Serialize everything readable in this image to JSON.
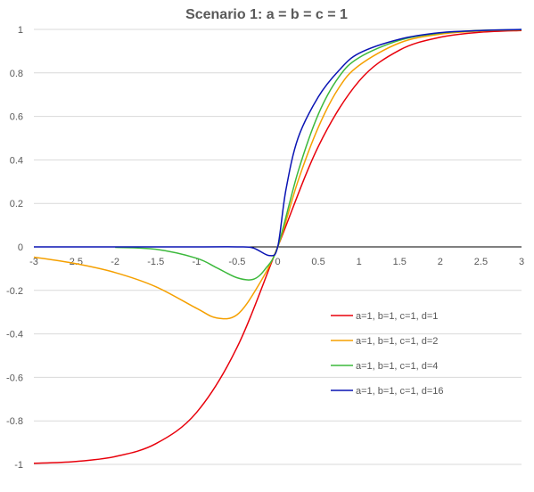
{
  "chart_data": {
    "type": "line",
    "title": "Scenario 1: a = b = c = 1",
    "xlabel": "",
    "ylabel": "",
    "xlim": [
      -3,
      3
    ],
    "ylim": [
      -1,
      1
    ],
    "x_ticks": [
      "-3",
      "-2.5",
      "-2",
      "-1.5",
      "-1",
      "-0.5",
      "0",
      "0.5",
      "1",
      "1.5",
      "2",
      "2.5",
      "3"
    ],
    "y_ticks": [
      "-1",
      "-0.8",
      "-0.6",
      "-0.4",
      "-0.2",
      "0",
      "0.2",
      "0.4",
      "0.6",
      "0.8",
      "1"
    ],
    "grid": "horizontal",
    "legend_position": "right",
    "series": [
      {
        "name": "a=1, b=1, c=1, d=1",
        "color": "#e8000b",
        "x": [
          -3,
          -2.5,
          -2,
          -1.5,
          -1,
          -0.5,
          0,
          0.5,
          1,
          1.5,
          2,
          2.5,
          3
        ],
        "values": [
          -0.995,
          -0.987,
          -0.964,
          -0.905,
          -0.762,
          -0.462,
          0.0,
          0.462,
          0.762,
          0.905,
          0.964,
          0.987,
          0.995
        ]
      },
      {
        "name": "a=1, b=1, c=1, d=2",
        "color": "#f5a000",
        "x": [
          -3,
          -2.5,
          -2,
          -1.5,
          -1,
          -0.75,
          -0.5,
          -0.25,
          0,
          0.25,
          0.5,
          0.75,
          1,
          1.5,
          2,
          2.5,
          3
        ],
        "values": [
          -0.047,
          -0.076,
          -0.118,
          -0.183,
          -0.282,
          -0.327,
          -0.312,
          -0.185,
          0.0,
          0.303,
          0.55,
          0.73,
          0.834,
          0.938,
          0.978,
          0.993,
          0.998
        ]
      },
      {
        "name": "a=1, b=1, c=1, d=4",
        "color": "#3cb93c",
        "x": [
          -2,
          -1.5,
          -1,
          -0.75,
          -0.5,
          -0.3,
          -0.15,
          0,
          0.25,
          0.5,
          0.75,
          1,
          1.5,
          2,
          2.5,
          3
        ],
        "values": [
          -0.002,
          -0.011,
          -0.052,
          -0.096,
          -0.142,
          -0.149,
          -0.1,
          0.0,
          0.345,
          0.61,
          0.78,
          0.87,
          0.95,
          0.983,
          0.995,
          0.999
        ]
      },
      {
        "name": "a=1, b=1, c=1, d=16",
        "color": "#0a14b4",
        "x": [
          -3,
          -1,
          -0.5,
          -0.3,
          -0.1,
          0,
          0.1,
          0.25,
          0.5,
          0.75,
          1,
          1.5,
          2,
          2.5,
          3
        ],
        "values": [
          0.0,
          0.0,
          0.0,
          -0.005,
          -0.04,
          0.0,
          0.26,
          0.5,
          0.69,
          0.81,
          0.89,
          0.955,
          0.985,
          0.995,
          1.0
        ]
      }
    ]
  }
}
